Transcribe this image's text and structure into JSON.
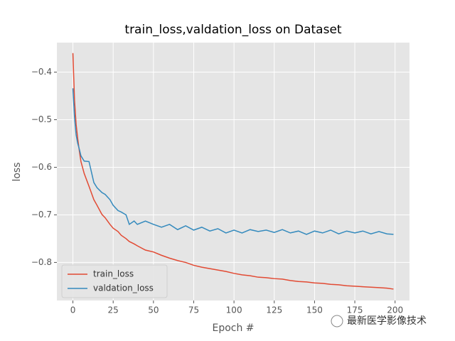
{
  "chart_data": {
    "type": "line",
    "title": "train_loss,valdation_loss on Dataset",
    "xlabel": "Epoch #",
    "ylabel": "loss",
    "watermark": "最新医学影像技术",
    "x": [
      0,
      1,
      2,
      3,
      4,
      5,
      7,
      10,
      13,
      15,
      18,
      20,
      23,
      25,
      28,
      30,
      33,
      35,
      38,
      40,
      45,
      50,
      55,
      60,
      65,
      70,
      75,
      80,
      85,
      90,
      95,
      100,
      105,
      110,
      115,
      120,
      125,
      130,
      135,
      140,
      145,
      150,
      155,
      160,
      165,
      170,
      175,
      180,
      185,
      190,
      195,
      199
    ],
    "series": [
      {
        "name": "train_loss",
        "color": "#E24A33",
        "values": [
          -0.36,
          -0.459,
          -0.51,
          -0.54,
          -0.566,
          -0.588,
          -0.613,
          -0.64,
          -0.668,
          -0.68,
          -0.699,
          -0.706,
          -0.72,
          -0.728,
          -0.735,
          -0.743,
          -0.75,
          -0.756,
          -0.761,
          -0.765,
          -0.774,
          -0.778,
          -0.785,
          -0.791,
          -0.796,
          -0.8,
          -0.806,
          -0.81,
          -0.813,
          -0.816,
          -0.819,
          -0.823,
          -0.826,
          -0.828,
          -0.831,
          -0.832,
          -0.834,
          -0.835,
          -0.838,
          -0.84,
          -0.841,
          -0.843,
          -0.844,
          -0.846,
          -0.847,
          -0.849,
          -0.85,
          -0.851,
          -0.852,
          -0.853,
          -0.854,
          -0.856
        ]
      },
      {
        "name": "valdation_loss",
        "color": "#348ABD",
        "values": [
          -0.434,
          -0.495,
          -0.532,
          -0.55,
          -0.562,
          -0.576,
          -0.587,
          -0.588,
          -0.632,
          -0.643,
          -0.653,
          -0.657,
          -0.668,
          -0.68,
          -0.691,
          -0.694,
          -0.7,
          -0.72,
          -0.713,
          -0.72,
          -0.713,
          -0.72,
          -0.726,
          -0.72,
          -0.731,
          -0.723,
          -0.732,
          -0.726,
          -0.734,
          -0.729,
          -0.738,
          -0.732,
          -0.738,
          -0.731,
          -0.735,
          -0.732,
          -0.737,
          -0.731,
          -0.738,
          -0.734,
          -0.741,
          -0.734,
          -0.738,
          -0.732,
          -0.74,
          -0.734,
          -0.738,
          -0.734,
          -0.74,
          -0.735,
          -0.74,
          -0.741
        ]
      }
    ],
    "xlim": [
      -9.95,
      208.95
    ],
    "ylim": [
      -0.88,
      -0.338
    ],
    "xticks": [
      0,
      25,
      50,
      75,
      100,
      125,
      150,
      175,
      200
    ],
    "yticks": [
      {
        "value": -0.8,
        "label": "−0.8"
      },
      {
        "value": -0.7,
        "label": "−0.7"
      },
      {
        "value": -0.6,
        "label": "−0.6"
      },
      {
        "value": -0.5,
        "label": "−0.5"
      },
      {
        "value": -0.4,
        "label": "−0.4"
      }
    ],
    "grid": true,
    "legend": "lower left"
  }
}
